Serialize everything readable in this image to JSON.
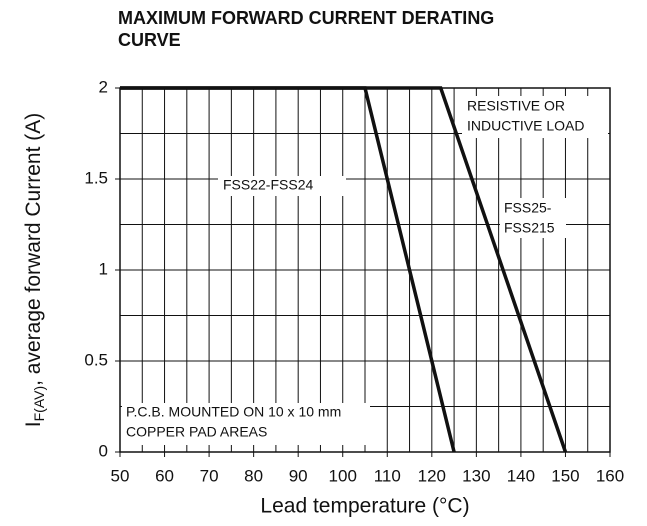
{
  "chart_data": {
    "type": "line",
    "title": [
      "MAXIMUM FORWARD CURRENT DERATING",
      "CURVE"
    ],
    "xlabel": "Lead temperature (°C)",
    "ylabel": {
      "main": "I",
      "sub": "F(AV)",
      "rest": ", average forward Current (A)"
    },
    "xlim": [
      50,
      160
    ],
    "ylim": [
      0,
      2
    ],
    "xticks": [
      50,
      60,
      70,
      80,
      90,
      100,
      110,
      120,
      130,
      140,
      150,
      160
    ],
    "yticks": [
      0,
      0.5,
      1,
      1.5,
      2
    ],
    "xgrid": [
      55,
      60,
      65,
      70,
      75,
      80,
      85,
      90,
      95,
      100,
      105,
      110,
      115,
      120,
      125,
      130,
      135,
      140,
      145,
      150,
      155
    ],
    "ygrid": [
      0.25,
      0.5,
      0.75,
      1,
      1.25,
      1.5,
      1.75
    ],
    "grid": true,
    "series": [
      {
        "name": [
          "FSS22-FSS24"
        ],
        "color": "#111111",
        "x": [
          50,
          105,
          125
        ],
        "values": [
          2,
          2,
          0
        ]
      },
      {
        "name": [
          "FSS25-",
          "FSS215"
        ],
        "color": "#111111",
        "x": [
          50,
          122,
          150
        ],
        "values": [
          2,
          2,
          0
        ]
      }
    ],
    "annotations": [
      {
        "lines": [
          "RESISTIVE OR",
          "INDUCTIVE LOAD"
        ]
      },
      {
        "lines": [
          "P.C.B. MOUNTED ON 10 x 10 mm",
          "COPPER PAD AREAS"
        ]
      }
    ]
  }
}
